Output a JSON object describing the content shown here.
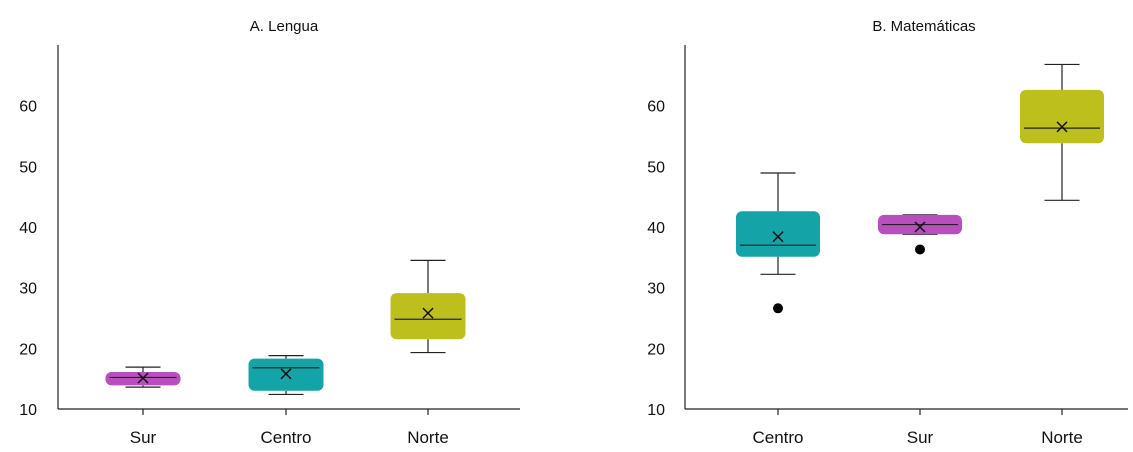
{
  "chart_data": [
    {
      "type": "box",
      "title": "A. Lengua",
      "xlabel": "",
      "ylabel": "",
      "ylim": [
        10,
        70
      ],
      "yticks": [
        "10",
        "20",
        "30",
        "40",
        "50",
        "60"
      ],
      "categories": [
        "Sur",
        "Centro",
        "Norte"
      ],
      "boxes": [
        {
          "category": "Sur",
          "color": "#b94fbf",
          "min": 13.6,
          "q1": 13.9,
          "median": 15.2,
          "q3": 16.1,
          "max": 16.9,
          "mean": 15.1,
          "outliers": []
        },
        {
          "category": "Centro",
          "color": "#14a4a8",
          "min": 12.4,
          "q1": 13.0,
          "median": 16.8,
          "q3": 18.3,
          "max": 18.8,
          "mean": 15.8,
          "outliers": []
        },
        {
          "category": "Norte",
          "color": "#bdbf1d",
          "min": 19.3,
          "q1": 21.5,
          "median": 24.8,
          "q3": 29.1,
          "max": 34.5,
          "mean": 25.8,
          "outliers": []
        }
      ]
    },
    {
      "type": "box",
      "title": "B. Matemáticas",
      "xlabel": "",
      "ylabel": "",
      "ylim": [
        10,
        70
      ],
      "yticks": [
        "10",
        "20",
        "30",
        "40",
        "50",
        "60"
      ],
      "categories": [
        "Centro",
        "Sur",
        "Norte"
      ],
      "boxes": [
        {
          "category": "Centro",
          "color": "#14a4a8",
          "min": 32.2,
          "q1": 35.1,
          "median": 37.0,
          "q3": 42.6,
          "max": 48.9,
          "mean": 38.4,
          "outliers": [
            26.6
          ]
        },
        {
          "category": "Sur",
          "color": "#b94fbf",
          "min": 38.8,
          "q1": 38.8,
          "median": 40.4,
          "q3": 42.0,
          "max": 42.0,
          "mean": 40.0,
          "outliers": [
            36.3
          ]
        },
        {
          "category": "Norte",
          "color": "#bdbf1d",
          "min": 44.4,
          "q1": 53.8,
          "median": 56.3,
          "q3": 62.6,
          "max": 66.8,
          "mean": 56.5,
          "outliers": []
        }
      ]
    }
  ]
}
